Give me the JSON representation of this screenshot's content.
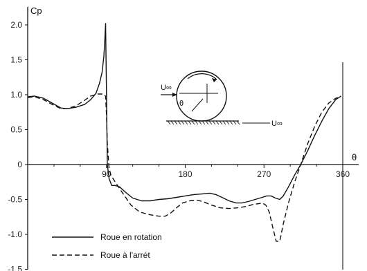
{
  "chart_data": {
    "type": "line",
    "title": "",
    "xlabel": "θ",
    "ylabel": "Cp",
    "xlim": [
      0,
      360
    ],
    "ylim": [
      -1.5,
      2.0
    ],
    "x_ticks": [
      90,
      180,
      270,
      360
    ],
    "x_tick_labels": [
      "90",
      "180",
      "270",
      "360"
    ],
    "y_ticks": [
      2.0,
      1.5,
      1.0,
      0.5,
      0,
      -0.5,
      -1.0,
      -1.5
    ],
    "y_tick_labels": [
      "2.0",
      "1.5",
      "1.0",
      "0.5",
      "0",
      "-0.5",
      "-1.0",
      "-1.5"
    ],
    "grid": false,
    "legend": "bottom-left",
    "series": [
      {
        "name": "Roue en rotation",
        "style": "solid",
        "color": "#111111",
        "points": [
          [
            0,
            0.97
          ],
          [
            8,
            0.98
          ],
          [
            18,
            0.95
          ],
          [
            28,
            0.88
          ],
          [
            38,
            0.81
          ],
          [
            45,
            0.8
          ],
          [
            55,
            0.82
          ],
          [
            65,
            0.86
          ],
          [
            72,
            0.93
          ],
          [
            78,
            1.02
          ],
          [
            82,
            1.16
          ],
          [
            85,
            1.32
          ],
          [
            87,
            1.55
          ],
          [
            88,
            1.75
          ],
          [
            89,
            2.02
          ],
          [
            90,
            1.0
          ],
          [
            91,
            0.0
          ],
          [
            93,
            -0.2
          ],
          [
            96,
            -0.3
          ],
          [
            100,
            -0.3
          ],
          [
            105,
            -0.32
          ],
          [
            112,
            -0.4
          ],
          [
            120,
            -0.48
          ],
          [
            130,
            -0.52
          ],
          [
            140,
            -0.52
          ],
          [
            150,
            -0.5
          ],
          [
            160,
            -0.49
          ],
          [
            170,
            -0.47
          ],
          [
            180,
            -0.45
          ],
          [
            190,
            -0.43
          ],
          [
            200,
            -0.42
          ],
          [
            208,
            -0.41
          ],
          [
            215,
            -0.43
          ],
          [
            222,
            -0.47
          ],
          [
            230,
            -0.52
          ],
          [
            238,
            -0.55
          ],
          [
            245,
            -0.55
          ],
          [
            252,
            -0.53
          ],
          [
            260,
            -0.5
          ],
          [
            268,
            -0.47
          ],
          [
            273,
            -0.45
          ],
          [
            278,
            -0.45
          ],
          [
            283,
            -0.48
          ],
          [
            288,
            -0.5
          ],
          [
            292,
            -0.45
          ],
          [
            298,
            -0.32
          ],
          [
            305,
            -0.15
          ],
          [
            312,
            0.0
          ],
          [
            320,
            0.2
          ],
          [
            328,
            0.42
          ],
          [
            336,
            0.62
          ],
          [
            344,
            0.8
          ],
          [
            352,
            0.93
          ],
          [
            358,
            0.98
          ]
        ]
      },
      {
        "name": "Roue à l'arrét",
        "style": "dashed",
        "color": "#111111",
        "points": [
          [
            0,
            0.96
          ],
          [
            8,
            0.97
          ],
          [
            18,
            0.93
          ],
          [
            28,
            0.86
          ],
          [
            38,
            0.8
          ],
          [
            45,
            0.8
          ],
          [
            55,
            0.84
          ],
          [
            65,
            0.92
          ],
          [
            72,
            0.98
          ],
          [
            80,
            1.01
          ],
          [
            86,
            1.01
          ],
          [
            89,
            0.98
          ],
          [
            90,
            0.7
          ],
          [
            91,
            0.3
          ],
          [
            93,
            -0.05
          ],
          [
            95,
            -0.15
          ],
          [
            100,
            -0.25
          ],
          [
            108,
            -0.4
          ],
          [
            118,
            -0.58
          ],
          [
            128,
            -0.68
          ],
          [
            140,
            -0.72
          ],
          [
            150,
            -0.74
          ],
          [
            157,
            -0.74
          ],
          [
            163,
            -0.7
          ],
          [
            170,
            -0.62
          ],
          [
            177,
            -0.55
          ],
          [
            185,
            -0.52
          ],
          [
            193,
            -0.51
          ],
          [
            200,
            -0.53
          ],
          [
            210,
            -0.58
          ],
          [
            220,
            -0.62
          ],
          [
            230,
            -0.63
          ],
          [
            240,
            -0.62
          ],
          [
            250,
            -0.6
          ],
          [
            258,
            -0.57
          ],
          [
            264,
            -0.56
          ],
          [
            268,
            -0.55
          ],
          [
            272,
            -0.58
          ],
          [
            276,
            -0.68
          ],
          [
            280,
            -0.9
          ],
          [
            284,
            -1.1
          ],
          [
            288,
            -1.1
          ],
          [
            292,
            -0.85
          ],
          [
            298,
            -0.55
          ],
          [
            305,
            -0.25
          ],
          [
            312,
            0.0
          ],
          [
            320,
            0.3
          ],
          [
            328,
            0.55
          ],
          [
            336,
            0.75
          ],
          [
            344,
            0.88
          ],
          [
            352,
            0.95
          ],
          [
            358,
            0.98
          ]
        ]
      }
    ],
    "annotations": {
      "inset_u_top": "U∞",
      "inset_u_bottom": "U∞",
      "inset_theta": "θ"
    }
  }
}
